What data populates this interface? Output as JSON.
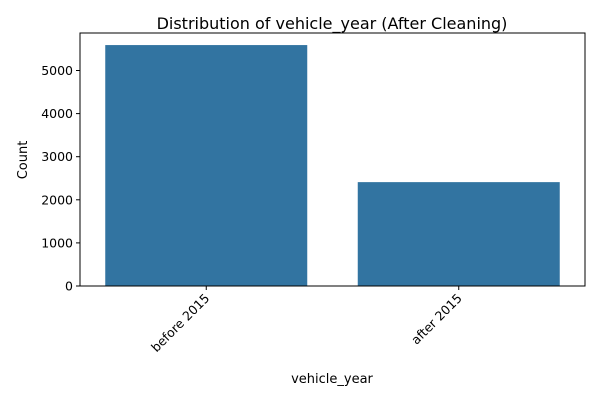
{
  "chart_data": {
    "type": "bar",
    "title": "Distribution of vehicle_year (After Cleaning)",
    "xlabel": "vehicle_year",
    "ylabel": "Count",
    "categories": [
      "before 2015",
      "after 2015"
    ],
    "values": [
      5590,
      2410
    ],
    "ylim": [
      0,
      5870
    ],
    "yticks": [
      0,
      1000,
      2000,
      3000,
      4000,
      5000
    ],
    "grid": false,
    "legend": "none",
    "bar_color": "#3274a1"
  }
}
